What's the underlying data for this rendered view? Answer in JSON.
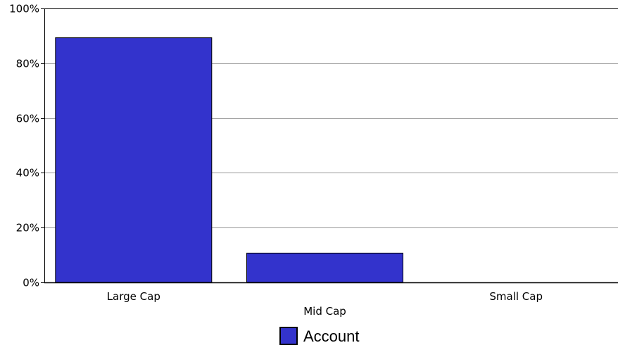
{
  "chart_data": {
    "type": "bar",
    "categories": [
      "Large Cap",
      "Mid Cap",
      "Small Cap"
    ],
    "series": [
      {
        "name": "Account",
        "values": [
          89.3,
          10.7,
          0
        ],
        "color": "#3333cc"
      }
    ],
    "yticks": [
      "0%",
      "20%",
      "40%",
      "60%",
      "80%",
      "100%"
    ],
    "ylim": [
      0,
      100
    ],
    "grid": true,
    "legend_position": "bottom-center",
    "colors": {
      "bar": "#3333cc",
      "bar_stroke": "#000000",
      "grid": "#999999",
      "axis": "#000000"
    }
  }
}
